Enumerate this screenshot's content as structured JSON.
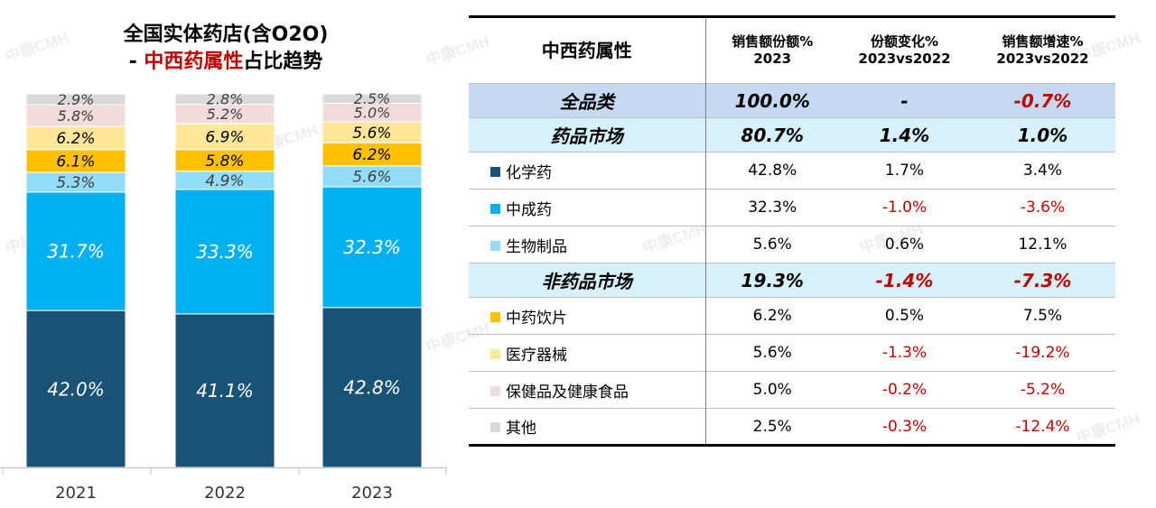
{
  "title": {
    "line1": "全国实体药店(含O2O)",
    "line2_prefix": "- ",
    "line2_highlight": "中西药属性",
    "line2_suffix": "占比趋势"
  },
  "watermark": "中康CMH",
  "chart_data": {
    "type": "bar",
    "stacked": true,
    "percent_stacked": true,
    "categories": [
      "2021",
      "2022",
      "2023"
    ],
    "series": [
      {
        "name": "化学药",
        "color": "#1a5276",
        "values": [
          42.0,
          41.1,
          42.8
        ],
        "labels": [
          "42.0%",
          "41.1%",
          "42.8%"
        ]
      },
      {
        "name": "中成药",
        "color": "#00b0f0",
        "values": [
          31.7,
          33.3,
          32.3
        ],
        "labels": [
          "31.7%",
          "33.3%",
          "32.3%"
        ]
      },
      {
        "name": "生物制品",
        "color": "#92dcf7",
        "values": [
          5.3,
          4.9,
          5.6
        ],
        "labels": [
          "5.3%",
          "4.9%",
          "5.6%"
        ]
      },
      {
        "name": "中药饮片",
        "color": "#ffc000",
        "values": [
          6.1,
          5.8,
          6.2
        ],
        "labels": [
          "6.1%",
          "5.8%",
          "6.2%"
        ]
      },
      {
        "name": "医疗器械",
        "color": "#ffe699",
        "values": [
          6.2,
          6.9,
          5.6
        ],
        "labels": [
          "6.2%",
          "6.9%",
          "5.6%"
        ]
      },
      {
        "name": "保健品及健康食品",
        "color": "#f2dcdb",
        "values": [
          5.8,
          5.2,
          5.0
        ],
        "labels": [
          "5.8%",
          "5.2%",
          "5.0%"
        ]
      },
      {
        "name": "其他",
        "color": "#d9d9d9",
        "values": [
          2.9,
          2.8,
          2.5
        ],
        "labels": [
          "2.9%",
          "2.8%",
          "2.5%"
        ]
      }
    ],
    "ylim": [
      0,
      100
    ],
    "grid": false,
    "legend": "none"
  },
  "table": {
    "headers": [
      {
        "l1": "中西药属性",
        "l2": ""
      },
      {
        "l1": "销售额份额%",
        "l2": "2023"
      },
      {
        "l1": "份额变化%",
        "l2": "2023vs2022"
      },
      {
        "l1": "销售额增速%",
        "l2": "2023vs2022"
      }
    ],
    "rows": [
      {
        "kind": "total",
        "name": "全品类",
        "share": "100.0%",
        "change": "-",
        "growth": "-0.7%",
        "change_neg": false,
        "growth_neg": true,
        "color": ""
      },
      {
        "kind": "sub",
        "name": "药品市场",
        "share": "80.7%",
        "change": "1.4%",
        "growth": "1.0%",
        "change_neg": false,
        "growth_neg": false,
        "color": ""
      },
      {
        "kind": "item",
        "name": "化学药",
        "share": "42.8%",
        "change": "1.7%",
        "growth": "3.4%",
        "change_neg": false,
        "growth_neg": false,
        "color": "#1a5276"
      },
      {
        "kind": "item",
        "name": "中成药",
        "share": "32.3%",
        "change": "-1.0%",
        "growth": "-3.6%",
        "change_neg": true,
        "growth_neg": true,
        "color": "#00b0f0"
      },
      {
        "kind": "item",
        "name": "生物制品",
        "share": "5.6%",
        "change": "0.6%",
        "growth": "12.1%",
        "change_neg": false,
        "growth_neg": false,
        "color": "#92dcf7"
      },
      {
        "kind": "sub",
        "name": "非药品市场",
        "share": "19.3%",
        "change": "-1.4%",
        "growth": "-7.3%",
        "change_neg": true,
        "growth_neg": true,
        "color": ""
      },
      {
        "kind": "item",
        "name": "中药饮片",
        "share": "6.2%",
        "change": "0.5%",
        "growth": "7.5%",
        "change_neg": false,
        "growth_neg": false,
        "color": "#ffc000"
      },
      {
        "kind": "item",
        "name": "医疗器械",
        "share": "5.6%",
        "change": "-1.3%",
        "growth": "-19.2%",
        "change_neg": true,
        "growth_neg": true,
        "color": "#ffe699"
      },
      {
        "kind": "item",
        "name": "保健品及健康食品",
        "share": "5.0%",
        "change": "-0.2%",
        "growth": "-5.2%",
        "change_neg": true,
        "growth_neg": true,
        "color": "#f2dcdb"
      },
      {
        "kind": "item",
        "name": "其他",
        "share": "2.5%",
        "change": "-0.3%",
        "growth": "-12.4%",
        "change_neg": true,
        "growth_neg": true,
        "color": "#d9d9d9"
      }
    ]
  }
}
